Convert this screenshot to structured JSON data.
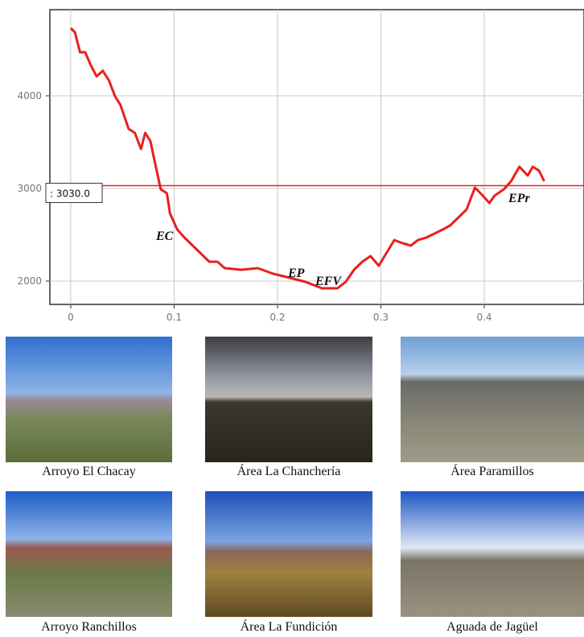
{
  "chart_data": {
    "type": "line",
    "color": "#e8201c",
    "x": [
      0,
      0.004,
      0.009,
      0.014,
      0.019,
      0.025,
      0.031,
      0.037,
      0.043,
      0.048,
      0.056,
      0.062,
      0.068,
      0.072,
      0.077,
      0.082,
      0.087,
      0.093,
      0.096,
      0.103,
      0.11,
      0.118,
      0.126,
      0.134,
      0.142,
      0.149,
      0.165,
      0.181,
      0.196,
      0.212,
      0.227,
      0.243,
      0.258,
      0.266,
      0.274,
      0.282,
      0.29,
      0.298,
      0.305,
      0.313,
      0.321,
      0.329,
      0.336,
      0.344,
      0.352,
      0.36,
      0.367,
      0.375,
      0.383,
      0.391,
      0.398,
      0.405,
      0.41,
      0.419,
      0.426,
      0.434,
      0.442,
      0.447,
      0.453,
      0.458
    ],
    "values": [
      4730,
      4687,
      4470,
      4470,
      4339,
      4209,
      4270,
      4165,
      3991,
      3904,
      3643,
      3600,
      3426,
      3600,
      3513,
      3252,
      2991,
      2948,
      2730,
      2557,
      2470,
      2383,
      2296,
      2209,
      2209,
      2139,
      2122,
      2139,
      2078,
      2035,
      1991,
      1922,
      1922,
      1991,
      2122,
      2209,
      2270,
      2165,
      2296,
      2443,
      2409,
      2383,
      2443,
      2470,
      2513,
      2557,
      2600,
      2687,
      2774,
      3009,
      2930,
      2843,
      2922,
      2991,
      3078,
      3235,
      3139,
      3235,
      3191,
      3078
    ],
    "xlim": [
      -0.0202,
      0.4965
    ],
    "xticks": [
      0,
      0.1,
      0.2,
      0.3,
      0.4
    ],
    "ylim": [
      1748,
      4930
    ],
    "yticks": [
      2000,
      3000,
      4000
    ],
    "grid": true,
    "reference_line": {
      "value": 3030,
      "label": ": 3030.0",
      "color": "#e8201c"
    },
    "annotations": [
      "EC",
      "EP",
      "EFV",
      "EPr"
    ]
  },
  "photos": [
    {
      "caption": "Arroyo El Chacay"
    },
    {
      "caption": "Área La Chanchería"
    },
    {
      "caption": "Área Paramillos"
    },
    {
      "caption": "Arroyo Ranchillos"
    },
    {
      "caption": "Área La Fundición"
    },
    {
      "caption": "Aguada de Jagüel"
    }
  ]
}
